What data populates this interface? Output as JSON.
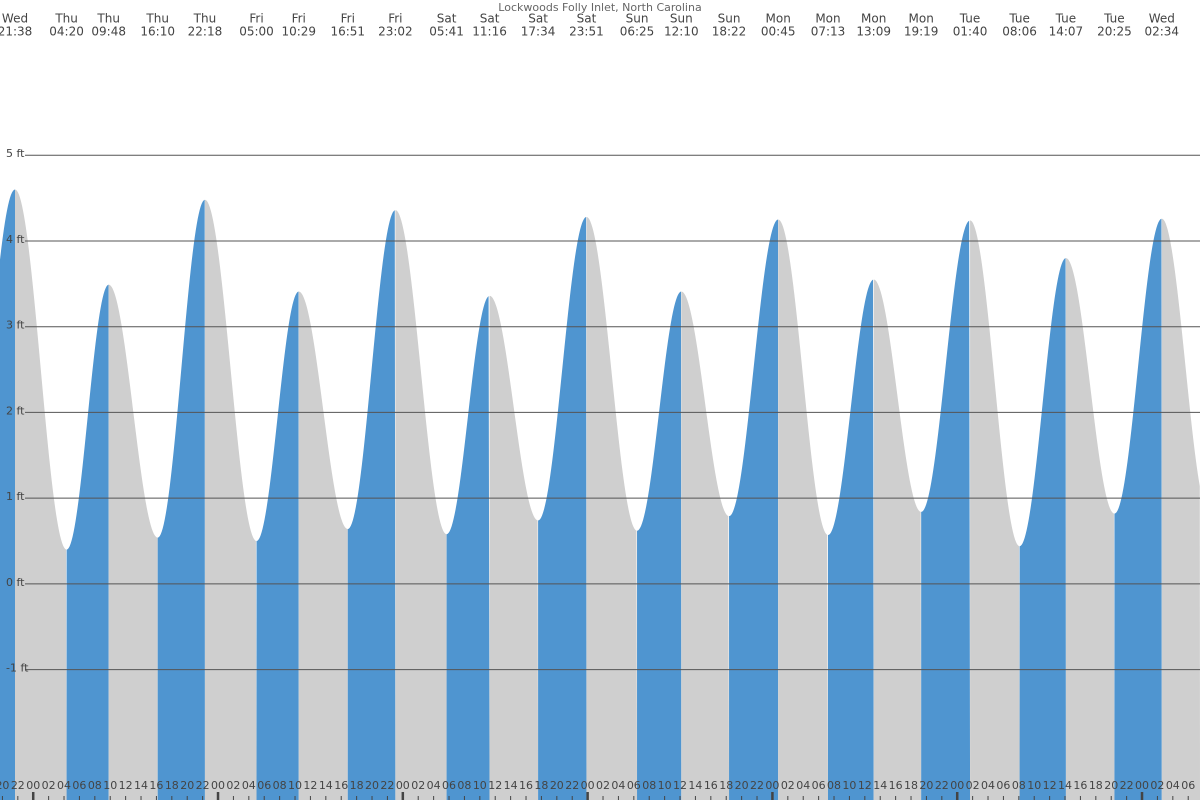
{
  "chart_data": {
    "type": "tide",
    "title": "Lockwoods Folly Inlet, North Carolina",
    "days": [
      "Wed",
      "Thu",
      "Thu",
      "Thu",
      "Thu",
      "Fri",
      "Fri",
      "Fri",
      "Fri",
      "Sat",
      "Sat",
      "Sat",
      "Sat",
      "Sun",
      "Sun",
      "Sun",
      "Mon",
      "Mon",
      "Mon",
      "Mon",
      "Tue",
      "Tue",
      "Tue",
      "Tue",
      "Wed"
    ],
    "times": [
      "21:38",
      "04:20",
      "09:48",
      "16:10",
      "22:18",
      "05:00",
      "10:29",
      "16:51",
      "23:02",
      "05:41",
      "11:16",
      "17:34",
      "23:51",
      "06:25",
      "12:10",
      "18:22",
      "00:45",
      "07:13",
      "13:09",
      "19:19",
      "01:40",
      "08:06",
      "14:07",
      "20:25",
      "02:34"
    ],
    "values": [
      4.6,
      0.4,
      3.49,
      0.54,
      4.48,
      0.5,
      3.41,
      0.64,
      4.36,
      0.58,
      3.36,
      0.74,
      4.28,
      0.62,
      3.41,
      0.79,
      4.25,
      0.57,
      3.55,
      0.84,
      4.24,
      0.44,
      3.8,
      0.82,
      4.26
    ],
    "rise_color": "#4f95d0",
    "fall_color": "#cfcfcf",
    "ylim": [
      -2.52,
      6.81
    ],
    "yticks": [
      {
        "value": 5,
        "label": "5 ft"
      },
      {
        "value": 4,
        "label": "4 ft"
      },
      {
        "value": 3,
        "label": "3 ft"
      },
      {
        "value": 2,
        "label": "2 ft"
      },
      {
        "value": 1,
        "label": "1 ft"
      },
      {
        "value": 0,
        "label": "0 ft"
      },
      {
        "value": -1,
        "label": "-1 ft"
      }
    ],
    "grid": true,
    "xticks": [
      "20",
      "22",
      "00",
      "02",
      "04",
      "06",
      "08",
      "10",
      "12",
      "14",
      "16",
      "18",
      "20",
      "22",
      "00",
      "02",
      "04",
      "06",
      "08",
      "10",
      "12",
      "14",
      "16",
      "18",
      "20",
      "22",
      "00",
      "02",
      "04",
      "06",
      "08",
      "10",
      "12",
      "14",
      "16",
      "18",
      "20",
      "22",
      "00",
      "02",
      "04",
      "06",
      "08",
      "10",
      "12",
      "14",
      "16",
      "18",
      "20",
      "22",
      "00",
      "02",
      "04",
      "06",
      "08",
      "10",
      "12",
      "14",
      "16",
      "18",
      "20",
      "22",
      "00",
      "02",
      "04",
      "06",
      "08",
      "10",
      "12",
      "14",
      "16",
      "18",
      "20",
      "22",
      "00",
      "02",
      "04",
      "06"
    ]
  }
}
